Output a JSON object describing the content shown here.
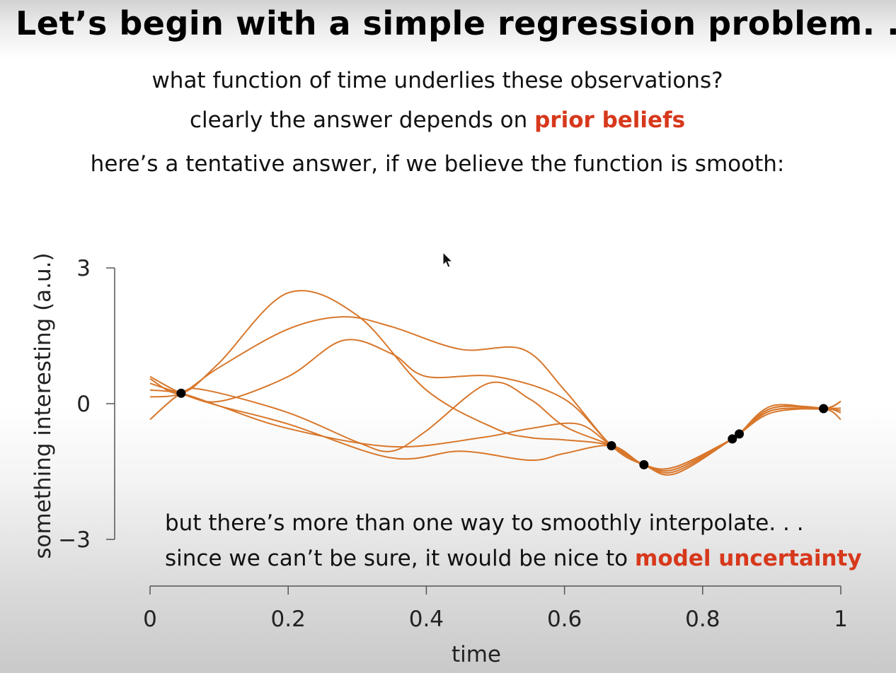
{
  "slide": {
    "title": "Let’s begin with a simple regression problem. . .",
    "line1": "what function of time underlies these observations?",
    "line2_pre": "clearly the answer depends on ",
    "line2_highlight": "prior beliefs",
    "line3": "here’s a tentative answer, if we believe the function is smooth:",
    "note1": "but there’s more than one way to smoothly interpolate. . .",
    "note2_pre": "since we can’t be sure, it would be nice to ",
    "note2_highlight": "model uncertainty"
  },
  "colors": {
    "curve": "#d8772b",
    "highlight": "#d7381c",
    "points": "#000000",
    "axis": "#555555"
  },
  "chart_data": {
    "type": "line",
    "xlabel": "time",
    "ylabel": "something interesting (a.u.)",
    "xlim": [
      0,
      1
    ],
    "ylim": [
      -3,
      3
    ],
    "x_ticks": [
      0,
      0.2,
      0.4,
      0.6,
      0.8,
      1
    ],
    "x_tick_labels": [
      "0",
      "0.2",
      "0.4",
      "0.6",
      "0.8",
      "1"
    ],
    "y_ticks": [
      -3,
      0,
      3
    ],
    "y_tick_labels": [
      "−3",
      "0",
      "3"
    ],
    "grid": false,
    "observations": {
      "x": [
        0.045,
        0.668,
        0.715,
        0.843,
        0.853,
        0.975
      ],
      "y": [
        0.23,
        -0.93,
        -1.35,
        -0.78,
        -0.67,
        -0.11
      ]
    },
    "series": [
      {
        "x": [
          0,
          0.045,
          0.1,
          0.2,
          0.3,
          0.4,
          0.5,
          0.55,
          0.6,
          0.668,
          0.715,
          0.76,
          0.843,
          0.853,
          0.9,
          0.975,
          1
        ],
        "values": [
          0.55,
          0.23,
          0.9,
          2.45,
          1.95,
          0.3,
          -0.55,
          -0.75,
          -0.8,
          -0.93,
          -1.35,
          -1.5,
          -0.78,
          -0.67,
          -0.2,
          -0.11,
          -0.2
        ]
      },
      {
        "x": [
          0,
          0.045,
          0.1,
          0.2,
          0.28,
          0.35,
          0.45,
          0.54,
          0.6,
          0.668,
          0.715,
          0.76,
          0.843,
          0.853,
          0.9,
          0.975,
          1
        ],
        "values": [
          0.15,
          0.23,
          0.8,
          1.65,
          1.92,
          1.7,
          1.2,
          1.2,
          0.3,
          -0.93,
          -1.35,
          -1.45,
          -0.78,
          -0.67,
          -0.15,
          -0.11,
          0.05
        ]
      },
      {
        "x": [
          0,
          0.045,
          0.1,
          0.2,
          0.28,
          0.35,
          0.4,
          0.5,
          0.6,
          0.668,
          0.715,
          0.76,
          0.843,
          0.853,
          0.9,
          0.975,
          1
        ],
        "values": [
          0.45,
          0.23,
          0.05,
          0.6,
          1.4,
          1.1,
          0.6,
          0.6,
          0.1,
          -0.93,
          -1.35,
          -1.4,
          -0.78,
          -0.67,
          -0.1,
          -0.11,
          -0.35
        ]
      },
      {
        "x": [
          0,
          0.045,
          0.08,
          0.2,
          0.3,
          0.35,
          0.4,
          0.49,
          0.55,
          0.6,
          0.668,
          0.715,
          0.76,
          0.843,
          0.853,
          0.9,
          0.975,
          1
        ],
        "values": [
          -0.35,
          0.23,
          0.3,
          -0.2,
          -0.85,
          -1.05,
          -0.6,
          0.45,
          0.1,
          -0.5,
          -0.93,
          -1.35,
          -1.45,
          -0.78,
          -0.67,
          -0.05,
          -0.11,
          0.05
        ]
      },
      {
        "x": [
          0,
          0.045,
          0.1,
          0.2,
          0.35,
          0.45,
          0.55,
          0.6,
          0.668,
          0.715,
          0.76,
          0.843,
          0.853,
          0.9,
          0.975,
          1
        ],
        "values": [
          0.6,
          0.23,
          -0.05,
          -0.45,
          -1.2,
          -1.05,
          -1.25,
          -1.1,
          -0.93,
          -1.35,
          -1.4,
          -0.78,
          -0.67,
          -0.15,
          -0.11,
          -0.1
        ]
      },
      {
        "x": [
          0,
          0.045,
          0.1,
          0.2,
          0.35,
          0.48,
          0.55,
          0.62,
          0.668,
          0.715,
          0.76,
          0.843,
          0.853,
          0.9,
          0.975,
          1
        ],
        "values": [
          0.3,
          0.23,
          -0.05,
          -0.55,
          -0.95,
          -0.75,
          -0.55,
          -0.45,
          -0.93,
          -1.35,
          -1.55,
          -0.78,
          -0.67,
          -0.1,
          -0.11,
          -0.15
        ]
      }
    ]
  }
}
